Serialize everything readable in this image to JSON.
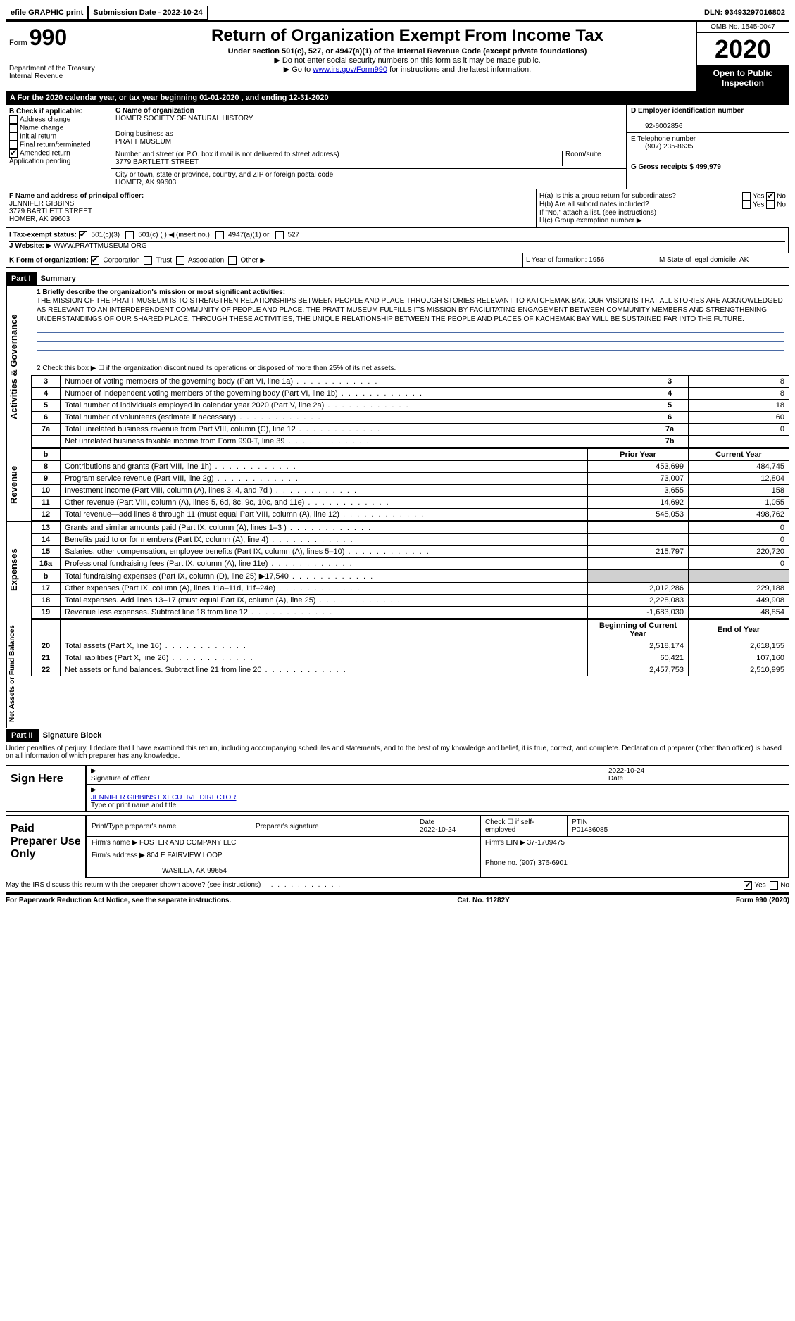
{
  "top": {
    "efile": "efile GRAPHIC print",
    "submission_label": "Submission Date - 2022-10-24",
    "dln_label": "DLN: 93493297016802"
  },
  "header": {
    "form_label": "Form",
    "form_num": "990",
    "dept": "Department of the Treasury",
    "irs": "Internal Revenue",
    "title": "Return of Organization Exempt From Income Tax",
    "subtitle": "Under section 501(c), 527, or 4947(a)(1) of the Internal Revenue Code (except private foundations)",
    "note1": "▶ Do not enter social security numbers on this form as it may be made public.",
    "note2_pre": "▶ Go to ",
    "note2_link": "www.irs.gov/Form990",
    "note2_post": " for instructions and the latest information.",
    "omb": "OMB No. 1545-0047",
    "year": "2020",
    "open_public": "Open to Public Inspection"
  },
  "row_a": "A  For the 2020 calendar year, or tax year beginning 01-01-2020   , and ending 12-31-2020",
  "col_b": {
    "header": "B Check if applicable:",
    "opts": [
      "Address change",
      "Name change",
      "Initial return",
      "Final return/terminated",
      "Amended return",
      "Application pending"
    ]
  },
  "col_c": {
    "name_label": "C Name of organization",
    "name": "HOMER SOCIETY OF NATURAL HISTORY",
    "dba_label": "Doing business as",
    "dba": "PRATT MUSEUM",
    "street_label": "Number and street (or P.O. box if mail is not delivered to street address)",
    "street": "3779 BARTLETT STREET",
    "room_label": "Room/suite",
    "city_label": "City or town, state or province, country, and ZIP or foreign postal code",
    "city": "HOMER, AK  99603"
  },
  "col_de": {
    "d_label": "D Employer identification number",
    "d_val": "92-6002856",
    "e_label": "E Telephone number",
    "e_val": "(907) 235-8635",
    "g_label": "G Gross receipts $ 499,979"
  },
  "row_f": {
    "label": "F  Name and address of principal officer:",
    "name": "JENNIFER GIBBINS",
    "street": "3779 BARTLETT STREET",
    "city": "HOMER, AK  99603"
  },
  "row_h": {
    "ha": "H(a)  Is this a group return for subordinates?",
    "hb": "H(b)  Are all subordinates included?",
    "hb_note": "If \"No,\" attach a list. (see instructions)",
    "hc": "H(c)  Group exemption number ▶",
    "yes": "Yes",
    "no": "No"
  },
  "row_i": {
    "label": "I    Tax-exempt status:",
    "o1": "501(c)(3)",
    "o2": "501(c) (  ) ◀ (insert no.)",
    "o3": "4947(a)(1) or",
    "o4": "527"
  },
  "row_j": {
    "label": "J   Website: ▶",
    "val": "WWW.PRATTMUSEUM.ORG"
  },
  "row_k": {
    "label": "K Form of organization:",
    "o1": "Corporation",
    "o2": "Trust",
    "o3": "Association",
    "o4": "Other ▶",
    "l_label": "L Year of formation: 1956",
    "m_label": "M State of legal domicile: AK"
  },
  "part1": {
    "header": "Part I",
    "title": "Summary",
    "line1_label": "1   Briefly describe the organization's mission or most significant activities:",
    "mission": "THE MISSION OF THE PRATT MUSEUM IS TO STRENGTHEN RELATIONSHIPS BETWEEN PEOPLE AND PLACE THROUGH STORIES RELEVANT TO KATCHEMAK BAY. OUR VISION IS THAT ALL STORIES ARE ACKNOWLEDGED AS RELEVANT TO AN INTERDEPENDENT COMMUNITY OF PEOPLE AND PLACE. THE PRATT MUSEUM FULFILLS ITS MISSION BY FACILITATING ENGAGEMENT BETWEEN COMMUNITY MEMBERS AND STRENGTHENING UNDERSTANDINGS OF OUR SHARED PLACE. THROUGH THESE ACTIVITIES, THE UNIQUE RELATIONSHIP BETWEEN THE PEOPLE AND PLACES OF KACHEMAK BAY WILL BE SUSTAINED FAR INTO THE FUTURE.",
    "line2": "2    Check this box ▶ ☐  if the organization discontinued its operations or disposed of more than 25% of its net assets.",
    "sec_activities": "Activities & Governance",
    "sec_revenue": "Revenue",
    "sec_expenses": "Expenses",
    "sec_netassets": "Net Assets or Fund Balances",
    "col_prior": "Prior Year",
    "col_current": "Current Year",
    "col_boy": "Beginning of Current Year",
    "col_eoy": "End of Year",
    "rows_top": [
      {
        "n": "3",
        "d": "Number of voting members of the governing body (Part VI, line 1a)",
        "c": "3",
        "v": "8"
      },
      {
        "n": "4",
        "d": "Number of independent voting members of the governing body (Part VI, line 1b)",
        "c": "4",
        "v": "8"
      },
      {
        "n": "5",
        "d": "Total number of individuals employed in calendar year 2020 (Part V, line 2a)",
        "c": "5",
        "v": "18"
      },
      {
        "n": "6",
        "d": "Total number of volunteers (estimate if necessary)",
        "c": "6",
        "v": "60"
      },
      {
        "n": "7a",
        "d": "Total unrelated business revenue from Part VIII, column (C), line 12",
        "c": "7a",
        "v": "0"
      },
      {
        "n": "",
        "d": "Net unrelated business taxable income from Form 990-T, line 39",
        "c": "7b",
        "v": ""
      }
    ],
    "rows_rev": [
      {
        "n": "8",
        "d": "Contributions and grants (Part VIII, line 1h)",
        "p": "453,699",
        "c": "484,745"
      },
      {
        "n": "9",
        "d": "Program service revenue (Part VIII, line 2g)",
        "p": "73,007",
        "c": "12,804"
      },
      {
        "n": "10",
        "d": "Investment income (Part VIII, column (A), lines 3, 4, and 7d )",
        "p": "3,655",
        "c": "158"
      },
      {
        "n": "11",
        "d": "Other revenue (Part VIII, column (A), lines 5, 6d, 8c, 9c, 10c, and 11e)",
        "p": "14,692",
        "c": "1,055"
      },
      {
        "n": "12",
        "d": "Total revenue—add lines 8 through 11 (must equal Part VIII, column (A), line 12)",
        "p": "545,053",
        "c": "498,762"
      }
    ],
    "rows_exp": [
      {
        "n": "13",
        "d": "Grants and similar amounts paid (Part IX, column (A), lines 1–3 )",
        "p": "",
        "c": "0"
      },
      {
        "n": "14",
        "d": "Benefits paid to or for members (Part IX, column (A), line 4)",
        "p": "",
        "c": "0"
      },
      {
        "n": "15",
        "d": "Salaries, other compensation, employee benefits (Part IX, column (A), lines 5–10)",
        "p": "215,797",
        "c": "220,720"
      },
      {
        "n": "16a",
        "d": "Professional fundraising fees (Part IX, column (A), line 11e)",
        "p": "",
        "c": "0"
      },
      {
        "n": "b",
        "d": "Total fundraising expenses (Part IX, column (D), line 25) ▶17,540",
        "p": "GREY",
        "c": "GREY"
      },
      {
        "n": "17",
        "d": "Other expenses (Part IX, column (A), lines 11a–11d, 11f–24e)",
        "p": "2,012,286",
        "c": "229,188"
      },
      {
        "n": "18",
        "d": "Total expenses. Add lines 13–17 (must equal Part IX, column (A), line 25)",
        "p": "2,228,083",
        "c": "449,908"
      },
      {
        "n": "19",
        "d": "Revenue less expenses. Subtract line 18 from line 12",
        "p": "-1,683,030",
        "c": "48,854"
      }
    ],
    "rows_net": [
      {
        "n": "20",
        "d": "Total assets (Part X, line 16)",
        "p": "2,518,174",
        "c": "2,618,155"
      },
      {
        "n": "21",
        "d": "Total liabilities (Part X, line 26)",
        "p": "60,421",
        "c": "107,160"
      },
      {
        "n": "22",
        "d": "Net assets or fund balances. Subtract line 21 from line 20",
        "p": "2,457,753",
        "c": "2,510,995"
      }
    ]
  },
  "part2": {
    "header": "Part II",
    "title": "Signature Block",
    "declaration": "Under penalties of perjury, I declare that I have examined this return, including accompanying schedules and statements, and to the best of my knowledge and belief, it is true, correct, and complete. Declaration of preparer (other than officer) is based on all information of which preparer has any knowledge.",
    "sign_here": "Sign Here",
    "sig_officer": "Signature of officer",
    "sig_date": "2022-10-24",
    "date_label": "Date",
    "officer_name": "JENNIFER GIBBINS  EXECUTIVE DIRECTOR",
    "type_name": "Type or print name and title",
    "paid_prep": "Paid Preparer Use Only",
    "prep_name_label": "Print/Type preparer's name",
    "prep_sig_label": "Preparer's signature",
    "prep_date_label": "Date",
    "prep_date": "2022-10-24",
    "check_self": "Check ☐ if self-employed",
    "ptin_label": "PTIN",
    "ptin": "P01436085",
    "firm_name_label": "Firm's name    ▶",
    "firm_name": "FOSTER AND COMPANY LLC",
    "firm_ein_label": "Firm's EIN ▶",
    "firm_ein": "37-1709475",
    "firm_addr_label": "Firm's address ▶",
    "firm_addr1": "804 E FAIRVIEW LOOP",
    "firm_addr2": "WASILLA, AK  99654",
    "phone_label": "Phone no.",
    "phone": "(907) 376-6901",
    "may_irs": "May the IRS discuss this return with the preparer shown above? (see instructions)",
    "yes": "Yes",
    "no": "No"
  },
  "footer": {
    "left": "For Paperwork Reduction Act Notice, see the separate instructions.",
    "center": "Cat. No. 11282Y",
    "right": "Form 990 (2020)"
  }
}
